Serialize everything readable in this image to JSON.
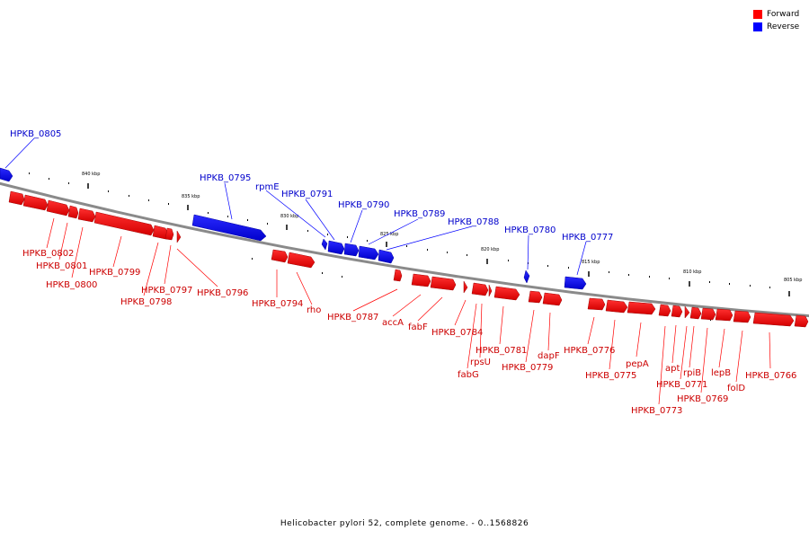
{
  "legend": {
    "forward_label": "Forward",
    "reverse_label": "Reverse",
    "forward_color": "#ff0000",
    "reverse_color": "#0000ff"
  },
  "caption": "Helicobacter pylori 52, complete genome. - 0..1568826",
  "scale_labels": [
    "840 kbp",
    "835 kbp",
    "830 kbp",
    "825 kbp",
    "820 kbp",
    "815 kbp",
    "810 kbp",
    "805 kbp"
  ],
  "genes": {
    "reverse": [
      "HPKB_0805",
      "HPKB_0795",
      "rpmE",
      "HPKB_0791",
      "HPKB_0790",
      "HPKB_0789",
      "HPKB_0788",
      "HPKB_0780",
      "HPKB_0777"
    ],
    "forward": [
      "HPKB_0802",
      "HPKB_0801",
      "HPKB_0800",
      "HPKB_0799",
      "HPKB_0797",
      "HPKB_0798",
      "HPKB_0796",
      "HPKB_0794",
      "rho",
      "HPKB_0787",
      "accA",
      "fabF",
      "HPKB_0784",
      "rpsU",
      "fabG",
      "HPKB_0781",
      "HPKB_0779",
      "dapF",
      "HPKB_0776",
      "HPKB_0775",
      "pepA",
      "apt",
      "rpiB",
      "HPKB_0771",
      "HPKB_0773",
      "HPKB_0769",
      "lepB",
      "folD",
      "HPKB_0766"
    ]
  }
}
